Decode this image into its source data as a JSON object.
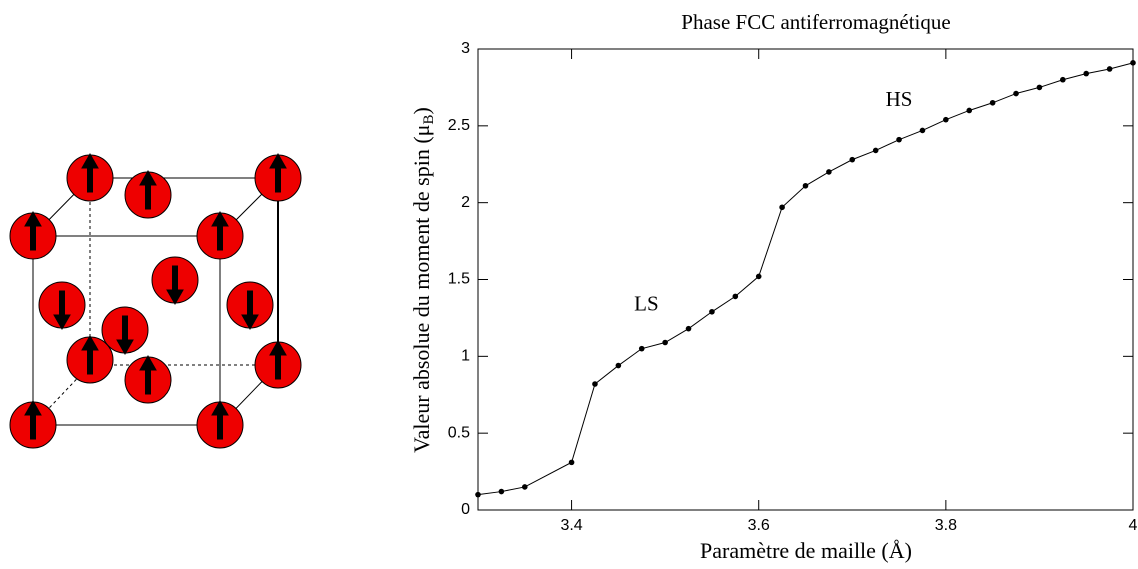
{
  "chart_data": {
    "type": "line",
    "title": "Phase FCC antiferromagnétique",
    "xlabel": "Paramètre de maille (Å)",
    "ylabel": [
      "Valeur absolue du moment de spin (μ",
      "B",
      ")"
    ],
    "x": [
      3.3,
      3.325,
      3.35,
      3.4,
      3.425,
      3.45,
      3.475,
      3.5,
      3.525,
      3.55,
      3.575,
      3.6,
      3.625,
      3.65,
      3.675,
      3.7,
      3.725,
      3.75,
      3.775,
      3.8,
      3.825,
      3.85,
      3.875,
      3.9,
      3.925,
      3.95,
      3.975,
      4.0
    ],
    "series": [
      {
        "color": "#000000",
        "values": [
          0.1,
          0.12,
          0.15,
          0.31,
          0.82,
          0.94,
          1.05,
          1.09,
          1.18,
          1.29,
          1.39,
          1.52,
          1.97,
          2.11,
          2.2,
          2.28,
          2.34,
          2.41,
          2.47,
          2.54,
          2.6,
          2.65,
          2.71,
          2.75,
          2.8,
          2.84,
          2.87,
          2.91
        ]
      }
    ],
    "xlim": [
      3.3,
      4
    ],
    "xticks": [
      3.4,
      3.6,
      3.8,
      4
    ],
    "ylim": [
      0,
      3
    ],
    "yticks": [
      0,
      0.5,
      1,
      1.5,
      2,
      2.5,
      3
    ],
    "annotations": [
      {
        "text": "LS",
        "x": 3.48,
        "y": 1.33
      },
      {
        "text": "HS",
        "x": 3.75,
        "y": 2.66
      }
    ]
  }
}
